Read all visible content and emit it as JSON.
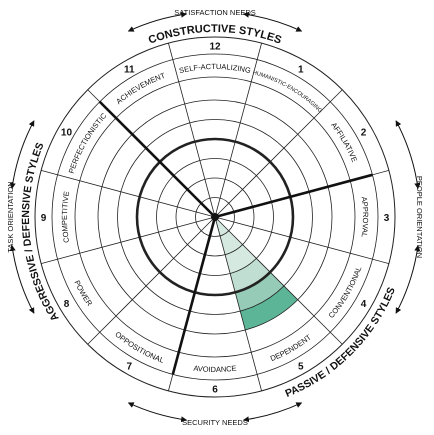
{
  "outer_labels": {
    "top": "SATISFACTION NEEDS",
    "bottom": "SECURITY NEEDS",
    "left": "TASK ORIENTATION",
    "right": "PEOPLE ORIENTATION"
  },
  "clusters": {
    "constructive": "CONSTRUCTIVE STYLES",
    "passive": "PASSIVE / DEFENSIVE STYLES",
    "aggressive": "AGGRESSIVE / DEFENSIVE STYLES"
  },
  "styles": [
    {
      "number": 1,
      "name": "HUMANISTIC-ENCOURAGING"
    },
    {
      "number": 2,
      "name": "AFFILIATIVE"
    },
    {
      "number": 3,
      "name": "APPROVAL"
    },
    {
      "number": 4,
      "name": "CONVENTIONAL"
    },
    {
      "number": 5,
      "name": "DEPENDENT"
    },
    {
      "number": 6,
      "name": "AVOIDANCE"
    },
    {
      "number": 7,
      "name": "OPPOSITIONAL"
    },
    {
      "number": 8,
      "name": "POWER"
    },
    {
      "number": 9,
      "name": "COMPETITIVE"
    },
    {
      "number": 10,
      "name": "PERFECTIONISTIC"
    },
    {
      "number": 11,
      "name": "ACHIEVEMENT"
    },
    {
      "number": 12,
      "name": "SELF-ACTUALIZING"
    }
  ]
}
